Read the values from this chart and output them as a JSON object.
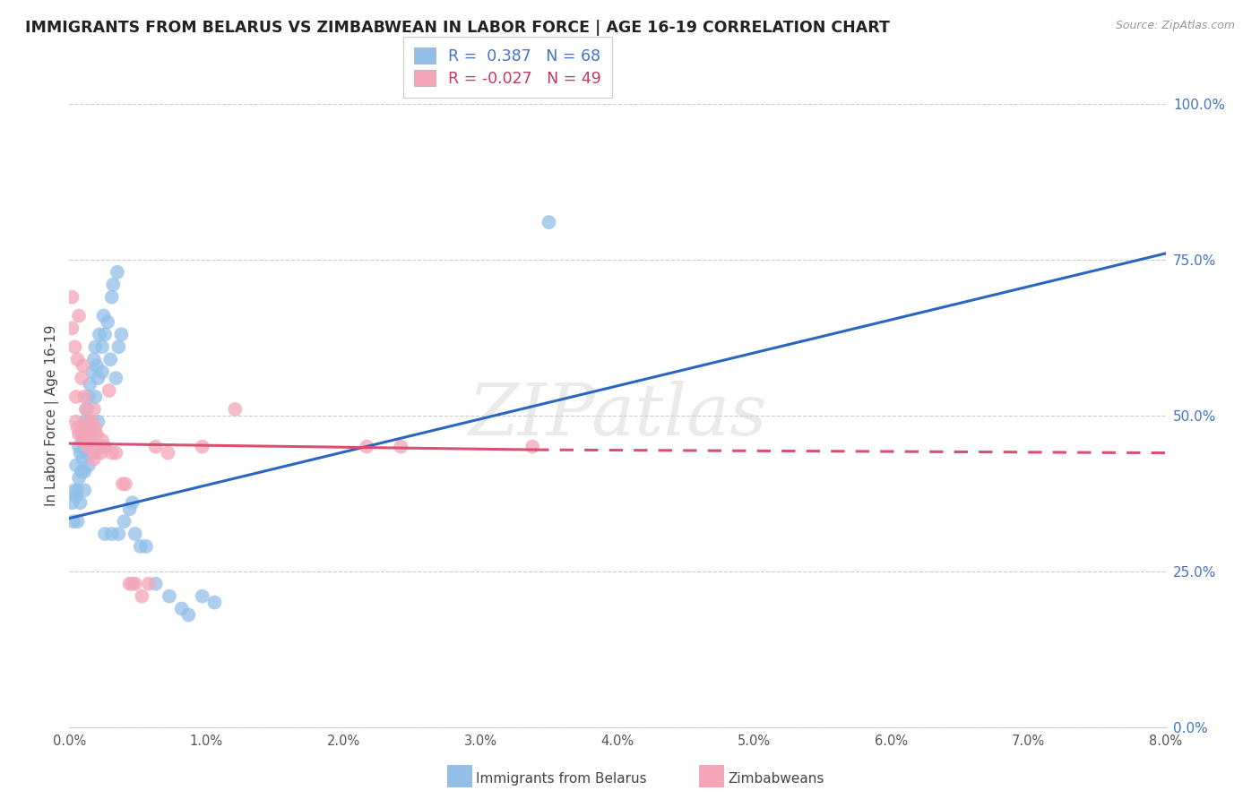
{
  "title": "IMMIGRANTS FROM BELARUS VS ZIMBABWEAN IN LABOR FORCE | AGE 16-19 CORRELATION CHART",
  "source": "Source: ZipAtlas.com",
  "ylabel": "In Labor Force | Age 16-19",
  "ylabel_ticks": [
    "0.0%",
    "25.0%",
    "50.0%",
    "75.0%",
    "100.0%"
  ],
  "ylabel_tick_vals": [
    0,
    25,
    50,
    75,
    100
  ],
  "xtick_labels": [
    "0.0%",
    "1.0%",
    "2.0%",
    "3.0%",
    "4.0%",
    "5.0%",
    "6.0%",
    "7.0%",
    "8.0%"
  ],
  "xtick_vals": [
    0,
    1,
    2,
    3,
    4,
    5,
    6,
    7,
    8
  ],
  "xmin": 0.0,
  "xmax": 8.0,
  "ymin": 0.0,
  "ymax": 100.0,
  "legend_labels": [
    "Immigrants from Belarus",
    "Zimbabweans"
  ],
  "legend_r_blue": "R =  0.387",
  "legend_n_blue": "N = 68",
  "legend_r_pink": "R = -0.027",
  "legend_n_pink": "N = 49",
  "blue_color": "#92bfe8",
  "pink_color": "#f4a5b8",
  "blue_line_color": "#2866c0",
  "pink_line_color": "#d94f72",
  "watermark": "ZIPatlas",
  "blue_points": [
    [
      0.02,
      36
    ],
    [
      0.03,
      33
    ],
    [
      0.04,
      38
    ],
    [
      0.05,
      42
    ],
    [
      0.05,
      37
    ],
    [
      0.06,
      38
    ],
    [
      0.06,
      33
    ],
    [
      0.07,
      45
    ],
    [
      0.07,
      40
    ],
    [
      0.08,
      44
    ],
    [
      0.08,
      36
    ],
    [
      0.09,
      47
    ],
    [
      0.09,
      41
    ],
    [
      0.1,
      46
    ],
    [
      0.1,
      43
    ],
    [
      0.11,
      49
    ],
    [
      0.11,
      41
    ],
    [
      0.11,
      38
    ],
    [
      0.13,
      51
    ],
    [
      0.13,
      45
    ],
    [
      0.13,
      44
    ],
    [
      0.14,
      53
    ],
    [
      0.14,
      47
    ],
    [
      0.14,
      45
    ],
    [
      0.14,
      42
    ],
    [
      0.15,
      55
    ],
    [
      0.15,
      49
    ],
    [
      0.17,
      57
    ],
    [
      0.17,
      45
    ],
    [
      0.17,
      44
    ],
    [
      0.18,
      59
    ],
    [
      0.18,
      47
    ],
    [
      0.19,
      61
    ],
    [
      0.19,
      53
    ],
    [
      0.19,
      45
    ],
    [
      0.2,
      58
    ],
    [
      0.21,
      56
    ],
    [
      0.21,
      49
    ],
    [
      0.22,
      63
    ],
    [
      0.24,
      61
    ],
    [
      0.24,
      57
    ],
    [
      0.25,
      66
    ],
    [
      0.25,
      45
    ],
    [
      0.26,
      63
    ],
    [
      0.26,
      31
    ],
    [
      0.28,
      65
    ],
    [
      0.3,
      59
    ],
    [
      0.31,
      69
    ],
    [
      0.31,
      31
    ],
    [
      0.32,
      71
    ],
    [
      0.34,
      56
    ],
    [
      0.35,
      73
    ],
    [
      0.36,
      61
    ],
    [
      0.36,
      31
    ],
    [
      0.38,
      63
    ],
    [
      0.4,
      33
    ],
    [
      0.44,
      35
    ],
    [
      0.46,
      36
    ],
    [
      0.48,
      31
    ],
    [
      0.52,
      29
    ],
    [
      0.56,
      29
    ],
    [
      0.63,
      23
    ],
    [
      0.73,
      21
    ],
    [
      0.82,
      19
    ],
    [
      0.87,
      18
    ],
    [
      0.97,
      21
    ],
    [
      1.06,
      20
    ],
    [
      3.5,
      81
    ]
  ],
  "pink_points": [
    [
      0.02,
      69
    ],
    [
      0.02,
      64
    ],
    [
      0.04,
      61
    ],
    [
      0.05,
      53
    ],
    [
      0.05,
      49
    ],
    [
      0.06,
      59
    ],
    [
      0.06,
      48
    ],
    [
      0.07,
      66
    ],
    [
      0.07,
      47
    ],
    [
      0.09,
      56
    ],
    [
      0.09,
      48
    ],
    [
      0.1,
      58
    ],
    [
      0.1,
      46
    ],
    [
      0.11,
      53
    ],
    [
      0.11,
      48
    ],
    [
      0.12,
      51
    ],
    [
      0.12,
      46
    ],
    [
      0.13,
      45
    ],
    [
      0.14,
      49
    ],
    [
      0.14,
      48
    ],
    [
      0.15,
      47
    ],
    [
      0.17,
      49
    ],
    [
      0.17,
      45
    ],
    [
      0.18,
      51
    ],
    [
      0.18,
      43
    ],
    [
      0.19,
      48
    ],
    [
      0.19,
      44
    ],
    [
      0.2,
      47
    ],
    [
      0.21,
      45
    ],
    [
      0.23,
      44
    ],
    [
      0.24,
      46
    ],
    [
      0.26,
      45
    ],
    [
      0.29,
      54
    ],
    [
      0.31,
      44
    ],
    [
      0.34,
      44
    ],
    [
      0.39,
      39
    ],
    [
      0.41,
      39
    ],
    [
      0.44,
      23
    ],
    [
      0.46,
      23
    ],
    [
      0.48,
      23
    ],
    [
      0.53,
      21
    ],
    [
      0.58,
      23
    ],
    [
      0.63,
      45
    ],
    [
      0.72,
      44
    ],
    [
      0.97,
      45
    ],
    [
      1.21,
      51
    ],
    [
      2.17,
      45
    ],
    [
      2.42,
      45
    ],
    [
      3.38,
      45
    ]
  ],
  "blue_line": {
    "x0": 0.0,
    "y0": 33.5,
    "x1": 8.0,
    "y1": 76.0
  },
  "pink_line_solid_x0": 0.0,
  "pink_line_solid_y0": 45.5,
  "pink_line_solid_x1": 3.4,
  "pink_line_solid_y1": 44.5,
  "pink_line_dashed_x0": 3.4,
  "pink_line_dashed_y0": 44.5,
  "pink_line_dashed_x1": 8.0,
  "pink_line_dashed_y1": 44.0
}
